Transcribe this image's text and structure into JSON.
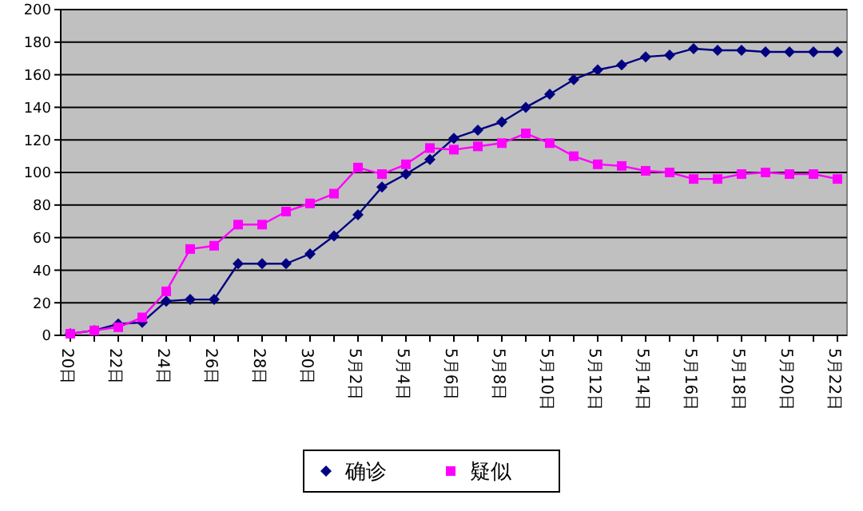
{
  "chart_data": {
    "type": "line",
    "categories": [
      "20日",
      null,
      "22日",
      null,
      "24日",
      null,
      "26日",
      null,
      "28日",
      null,
      "30日",
      null,
      "5月2日",
      null,
      "5月4日",
      null,
      "5月6日",
      null,
      "5月8日",
      null,
      "5月10日",
      null,
      "5月12日",
      null,
      "5月14日",
      null,
      "5月16日",
      null,
      "5月18日",
      null,
      "5月20日",
      null,
      "5月22日"
    ],
    "series": [
      {
        "name": "确诊",
        "color": "#000080",
        "marker": "diamond",
        "values": [
          1,
          3,
          7,
          8,
          21,
          22,
          22,
          44,
          44,
          44,
          50,
          61,
          74,
          91,
          99,
          108,
          121,
          126,
          131,
          140,
          148,
          157,
          163,
          166,
          171,
          172,
          176,
          175,
          175,
          174,
          174,
          174,
          174
        ]
      },
      {
        "name": "疑似",
        "color": "#ff00ff",
        "marker": "square",
        "values": [
          1,
          3,
          5,
          11,
          27,
          53,
          55,
          68,
          68,
          76,
          81,
          87,
          103,
          99,
          105,
          115,
          114,
          116,
          118,
          124,
          118,
          110,
          105,
          104,
          101,
          100,
          96,
          96,
          99,
          100,
          99,
          99,
          96
        ]
      }
    ],
    "ylim": [
      0,
      200
    ],
    "yticks": [
      0,
      20,
      40,
      60,
      80,
      100,
      120,
      140,
      160,
      180,
      200
    ],
    "grid": "y",
    "legend": "bottom"
  }
}
